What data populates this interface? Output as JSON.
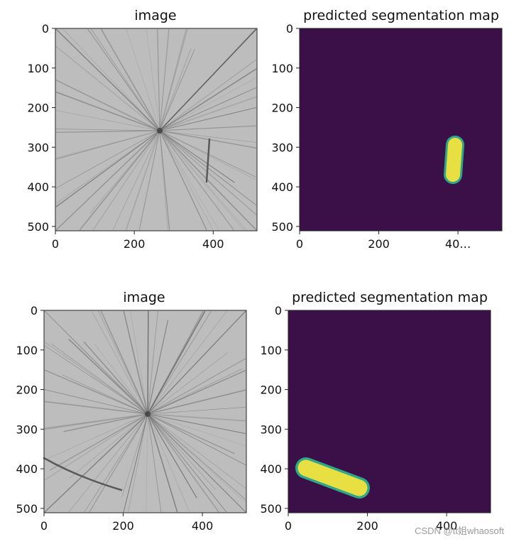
{
  "figure": {
    "watermark": "CSDN @tt姐whaosoft"
  },
  "colors": {
    "mask_background": "#3b1049",
    "mask_foreground": "#e8e043",
    "mask_edge": "#2fa88a",
    "photo_background": "#bdbdbd",
    "photo_streak": "#5e5e5e"
  },
  "chart_data": [
    {
      "type": "image",
      "title": "image",
      "xticks": [
        0,
        200,
        400
      ],
      "yticks": [
        0,
        100,
        200,
        300,
        400,
        500
      ],
      "xlim": [
        0,
        511
      ],
      "ylim": [
        511,
        0
      ],
      "content": "grayscale photo, radial streaks, star centre near (265, 260), crack near x=390 y 280-390"
    },
    {
      "type": "image",
      "title": "predicted segmentation map",
      "xticks": [
        0,
        200,
        "40…"
      ],
      "yticks": [
        0,
        100,
        200,
        300,
        400,
        500
      ],
      "xlim": [
        0,
        511
      ],
      "ylim": [
        511,
        0
      ],
      "segment": {
        "from": [
          395,
          295
        ],
        "to": [
          390,
          370
        ],
        "width": 42
      }
    },
    {
      "type": "image",
      "title": "image",
      "xticks": [
        0,
        200,
        400
      ],
      "yticks": [
        0,
        100,
        200,
        300,
        400,
        500
      ],
      "xlim": [
        0,
        511
      ],
      "ylim": [
        511,
        0
      ],
      "content": "grayscale photo, radial streaks, star centre near (262, 262), crack from (0, 370) to (195, 455)"
    },
    {
      "type": "image",
      "title": "predicted segmentation map",
      "xticks": [
        0,
        200,
        400
      ],
      "yticks": [
        0,
        100,
        200,
        300,
        400,
        500
      ],
      "xlim": [
        0,
        511
      ],
      "ylim": [
        511,
        0
      ],
      "segment": {
        "from": [
          45,
          398
        ],
        "to": [
          180,
          448
        ],
        "width": 48
      }
    }
  ]
}
